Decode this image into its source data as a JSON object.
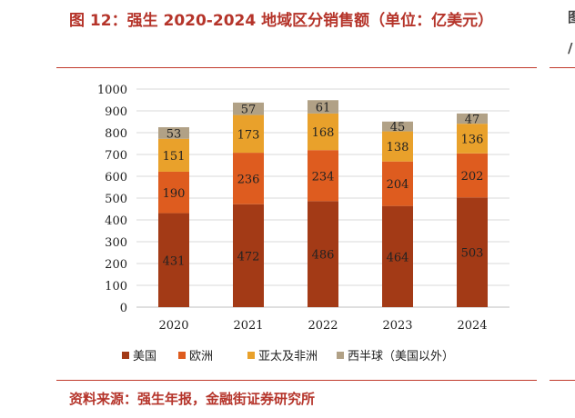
{
  "title": "图 12：强生 2020-2024 地域区分销售额（单位：亿美元）",
  "source": "资料来源：强生年报，金融街证券研究所",
  "edge": {
    "top": "图",
    "mid": "/",
    "bottom": ""
  },
  "colors": {
    "accent": "#b5342a",
    "美国": "#a33a16",
    "欧洲": "#de5c1f",
    "亚太及非洲": "#e9a12b",
    "西半球": "#b1a186"
  },
  "chart_data": {
    "type": "bar",
    "stacked": true,
    "categories": [
      "2020",
      "2021",
      "2022",
      "2023",
      "2024"
    ],
    "series": [
      {
        "name": "美国",
        "values": [
          431,
          472,
          486,
          464,
          503
        ]
      },
      {
        "name": "欧洲",
        "values": [
          190,
          236,
          234,
          204,
          202
        ]
      },
      {
        "name": "亚太及非洲",
        "values": [
          151,
          173,
          168,
          138,
          136
        ]
      },
      {
        "name": "西半球（美国以外）",
        "values": [
          53,
          57,
          61,
          45,
          47
        ]
      }
    ],
    "ylim": [
      0,
      1000
    ],
    "yticks": [
      "0",
      "100",
      "200",
      "300",
      "400",
      "500",
      "600",
      "700",
      "800",
      "900",
      "1000"
    ],
    "grid": true,
    "legend": "bottom"
  }
}
